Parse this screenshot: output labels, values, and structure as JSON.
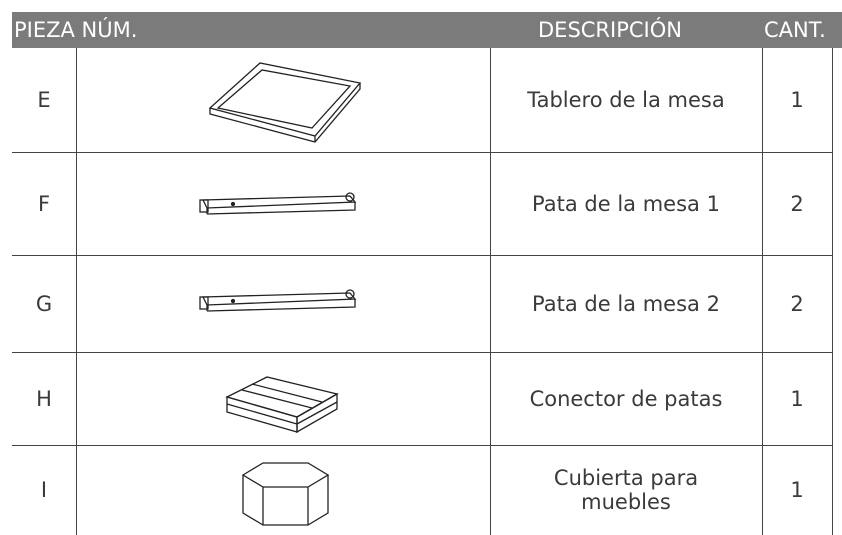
{
  "header": {
    "columns": [
      "PIEZA NÚM.",
      "DESCRIPCIÓN",
      "CANT."
    ]
  },
  "table": {
    "rows": [
      {
        "part": "E",
        "description": "Tablero de la mesa",
        "quantity": 1
      },
      {
        "part": "F",
        "description": "Pata de la mesa 1",
        "quantity": 2
      },
      {
        "part": "G",
        "description": "Pata de la mesa 2",
        "quantity": 2
      },
      {
        "part": "H",
        "description": "Conector de patas",
        "quantity": 1
      },
      {
        "part": "I",
        "description": "Cubierta para muebles",
        "quantity": 1
      }
    ]
  }
}
